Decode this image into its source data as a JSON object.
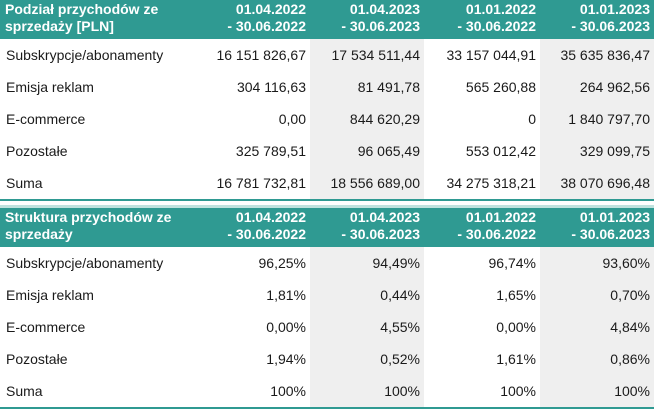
{
  "colors": {
    "header_bg": "#2f9a92",
    "header_text": "#ffffff",
    "shaded_column": "#efefef"
  },
  "tables": [
    {
      "title": "Podział przychodów ze sprzedaży [PLN]",
      "periods": [
        {
          "from": "01.04.2022",
          "to": "- 30.06.2022"
        },
        {
          "from": "01.04.2023",
          "to": "- 30.06.2023"
        },
        {
          "from": "01.01.2022",
          "to": "- 30.06.2022"
        },
        {
          "from": "01.01.2023",
          "to": "- 30.06.2023"
        }
      ],
      "rows": [
        {
          "label": "Subskrypcje/abonamenty",
          "values": [
            "16 151 826,67",
            "17 534 511,44",
            "33 157 044,91",
            "35 635 836,47"
          ]
        },
        {
          "label": "Emisja reklam",
          "values": [
            "304 116,63",
            "81 491,78",
            "565 260,88",
            "264 962,56"
          ]
        },
        {
          "label": "E-commerce",
          "values": [
            "0,00",
            "844 620,29",
            "0",
            "1 840 797,70"
          ]
        },
        {
          "label": "Pozostałe",
          "values": [
            "325 789,51",
            "96 065,49",
            "553 012,42",
            "329 099,75"
          ]
        },
        {
          "label": "Suma",
          "values": [
            "16 781 732,81",
            "18 556 689,00",
            "34 275 318,21",
            "38 070 696,48"
          ]
        }
      ]
    },
    {
      "title": "Struktura przychodów ze sprzedaży",
      "periods": [
        {
          "from": "01.04.2022",
          "to": "- 30.06.2022"
        },
        {
          "from": "01.04.2023",
          "to": "- 30.06.2023"
        },
        {
          "from": "01.01.2022",
          "to": "- 30.06.2022"
        },
        {
          "from": "01.01.2023",
          "to": "- 30.06.2023"
        }
      ],
      "rows": [
        {
          "label": "Subskrypcje/abonamenty",
          "values": [
            "96,25%",
            "94,49%",
            "96,74%",
            "93,60%"
          ]
        },
        {
          "label": "Emisja reklam",
          "values": [
            "1,81%",
            "0,44%",
            "1,65%",
            "0,70%"
          ]
        },
        {
          "label": "E-commerce",
          "values": [
            "0,00%",
            "4,55%",
            "0,00%",
            "4,84%"
          ]
        },
        {
          "label": "Pozostałe",
          "values": [
            "1,94%",
            "0,52%",
            "1,61%",
            "0,86%"
          ]
        },
        {
          "label": "Suma",
          "values": [
            "100%",
            "100%",
            "100%",
            "100%"
          ]
        }
      ]
    }
  ]
}
